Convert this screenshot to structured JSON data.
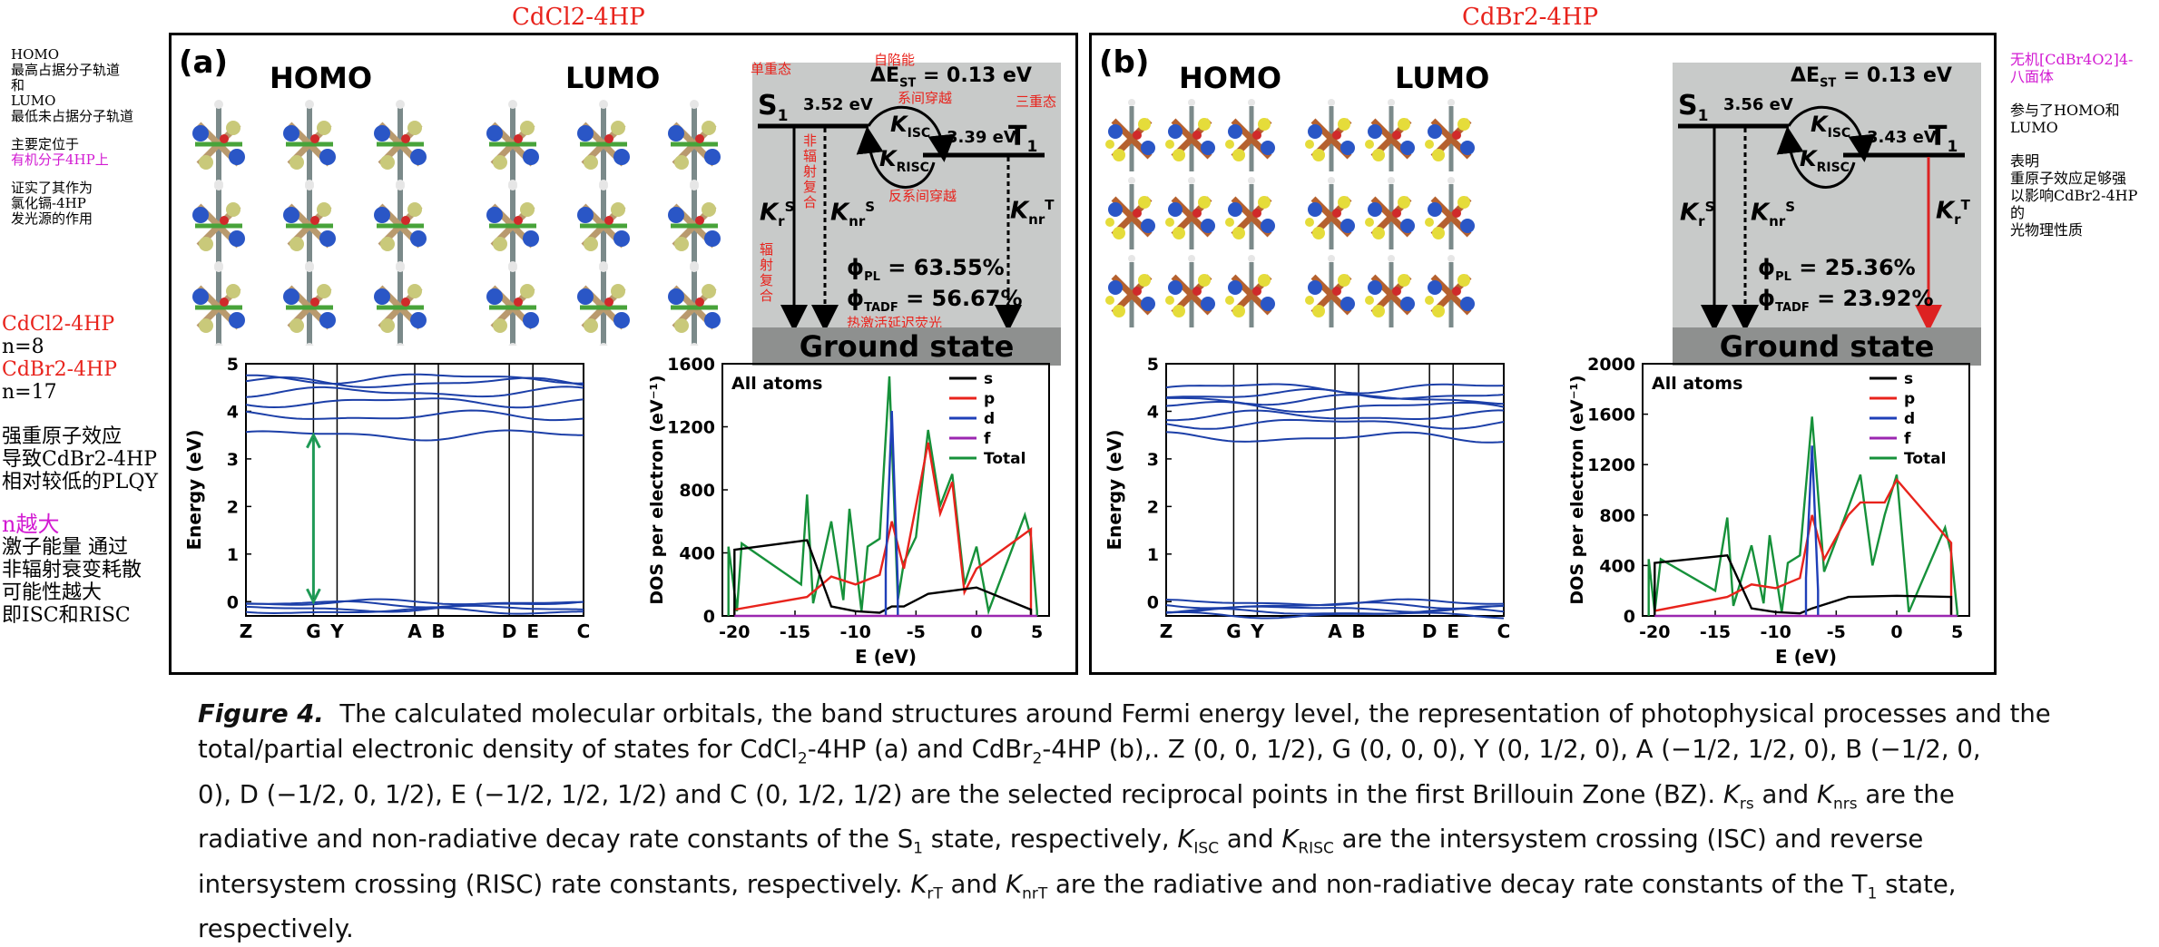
{
  "titles": {
    "left": "CdCl2-4HP",
    "right": "CdBr2-4HP"
  },
  "left_notes": {
    "homo_line1": "HOMO",
    "homo_line2": "最高占据分子轨道",
    "and1": "和",
    "lumo_line1": "LUMO",
    "lumo_line2": "最低未占据分子轨道",
    "mainly_1": "主要定位于",
    "mainly_2": "有机分子4HP上",
    "proof_1": "证实了其作为",
    "proof_2": "氯化镉-4HP",
    "proof_3": "发光源的作用",
    "cdcl": "CdCl2-4HP",
    "n8": "n=8",
    "cdbr": "CdBr2-4HP",
    "n17": "n=17",
    "heavy_1": "强重原子效应",
    "heavy_2": "导致CdBr2-4HP",
    "heavy_3": "相对较低的PLQY",
    "nbig": "n越大",
    "exc_1": "激子能量  通过",
    "exc_2": "非辐射衰变耗散",
    "exc_3": "可能性越大",
    "exc_4": "即ISC和RISC"
  },
  "right_notes": {
    "inorg_1": "无机[CdBr4O2]4-",
    "inorg_2": "八面体",
    "part": "参与了HOMO和LUMO",
    "show_1": "表明",
    "show_2": "重原子效应足够强",
    "show_3": "以影响CdBr2-4HP",
    "show_4": "的",
    "show_5": "光物理性质"
  },
  "panel_a": {
    "label": "(a)",
    "homo": "HOMO",
    "lumo": "LUMO",
    "s1": "S",
    "s1_sub": "1",
    "s1_energy": "3.52 eV",
    "dest": "ΔE",
    "dest_sub": "ST",
    "dest_val": " = 0.13 eV",
    "t1": "T",
    "t1_sub": "1",
    "t1_energy": "3.39 eV",
    "kisc": "K",
    "kisc_sub": "ISC",
    "krisc": "K",
    "krisc_sub": "RISC",
    "kr": "K",
    "kr_sup": "S",
    "kr_sub": "r",
    "knr": "K",
    "knr_sup": "S",
    "knr_sub": "nr",
    "knrt": "K",
    "knrt_sup": "T",
    "knrt_sub": "nr",
    "phipl": "ϕ",
    "phipl_sub": "PL",
    "phipl_val": " = 63.55%",
    "phitadf": "ϕ",
    "phitadf_sub": "TADF",
    "phitadf_val": " = 56.67%",
    "ground": "Ground state",
    "cn_singlet": "单重态",
    "cn_self": "自陷能",
    "cn_isc": "系间穿越",
    "cn_triplet": "三重态",
    "cn_nonrad": "非\n辐\n射\n复\n合",
    "cn_rad": "辐\n射\n复\n合",
    "cn_risc": "反系间穿越",
    "cn_tadf": "热激活延迟荧光"
  },
  "panel_b": {
    "label": "(b)",
    "homo": "HOMO",
    "lumo": "LUMO",
    "s1": "S",
    "s1_sub": "1",
    "s1_energy": "3.56 eV",
    "dest": "ΔE",
    "dest_sub": "ST",
    "dest_val": " = 0.13 eV",
    "t1": "T",
    "t1_sub": "1",
    "t1_energy": "3.43 eV",
    "kisc": "K",
    "kisc_sub": "ISC",
    "krisc": "K",
    "krisc_sub": "RISC",
    "kr": "K",
    "kr_sup": "S",
    "kr_sub": "r",
    "knr": "K",
    "knr_sup": "S",
    "knr_sub": "nr",
    "krt": "K",
    "krt_sup": "T",
    "krt_sub": "r",
    "phipl": "ϕ",
    "phipl_sub": "PL",
    "phipl_val": " = 25.36%",
    "phitadf": "ϕ",
    "phitadf_sub": "TADF",
    "phitadf_val": " = 23.92%",
    "ground": "Ground state"
  },
  "chart_data": [
    {
      "type": "line",
      "id": "band_a",
      "ylabel": "Energy (eV)",
      "ylim": [
        -0.3,
        5
      ],
      "yticks": [
        "0",
        "1",
        "2",
        "3",
        "4",
        "5"
      ],
      "kpoints": [
        "Z",
        "G",
        "Y",
        "A",
        "B",
        "D",
        "E",
        "C"
      ],
      "conduction_bands_approx": [
        3.5,
        3.9,
        4.2,
        4.4,
        4.6,
        4.7
      ],
      "valence_bands_approx": [
        -0.02,
        -0.05,
        -0.15,
        -0.2
      ],
      "gap_arrow": [
        0.0,
        3.5
      ]
    },
    {
      "type": "line",
      "id": "dos_a",
      "title": "All atoms",
      "xlabel": "E (eV)",
      "ylabel": "DOS per electron (eV⁻¹)",
      "xlim": [
        -21,
        6
      ],
      "ylim": [
        0,
        1600
      ],
      "xticks": [
        "-20",
        "-15",
        "-10",
        "-5",
        "0",
        "5"
      ],
      "yticks": [
        "0",
        "400",
        "800",
        "1200",
        "1600"
      ],
      "legend": [
        "s",
        "p",
        "d",
        "f",
        "Total"
      ],
      "series": [
        {
          "name": "Total",
          "x": [
            -20.5,
            -19.8,
            -19.4,
            -14.5,
            -14,
            -13.5,
            -12,
            -11,
            -10.5,
            -9.5,
            -9,
            -8,
            -7.2,
            -6.5,
            -6,
            -5,
            -4,
            -3,
            -2,
            -1,
            0,
            1,
            4,
            4.5,
            5
          ],
          "values": [
            440,
            30,
            460,
            200,
            770,
            80,
            600,
            100,
            680,
            30,
            440,
            490,
            1520,
            100,
            340,
            500,
            1180,
            700,
            900,
            200,
            440,
            30,
            640,
            500,
            30
          ]
        },
        {
          "name": "p",
          "x": [
            -20,
            -14,
            -12,
            -10,
            -8,
            -7,
            -6,
            -4,
            -3,
            -2,
            -1,
            0,
            4.5
          ],
          "values": [
            40,
            120,
            250,
            200,
            260,
            600,
            300,
            1100,
            650,
            850,
            150,
            300,
            550
          ]
        },
        {
          "name": "s",
          "x": [
            -20,
            -14,
            -12,
            -10,
            -8,
            -7,
            -6,
            -4,
            0,
            4.5
          ],
          "values": [
            420,
            480,
            60,
            30,
            20,
            60,
            60,
            140,
            180,
            40
          ]
        },
        {
          "name": "d",
          "x": [
            -7.5,
            -7,
            -6.5
          ],
          "values": [
            300,
            1300,
            200
          ]
        },
        {
          "name": "f",
          "x": [
            -20,
            5
          ],
          "values": [
            0,
            0
          ]
        }
      ]
    },
    {
      "type": "line",
      "id": "band_b",
      "ylabel": "Energy (eV)",
      "ylim": [
        -0.3,
        5
      ],
      "yticks": [
        "0",
        "1",
        "2",
        "3",
        "4",
        "5"
      ],
      "kpoints": [
        "Z",
        "G",
        "Y",
        "A",
        "B",
        "D",
        "E",
        "C"
      ],
      "conduction_bands_approx": [
        3.45,
        3.75,
        3.9,
        4.1,
        4.25,
        4.35,
        4.5
      ],
      "valence_bands_approx": [
        -0.02,
        -0.08,
        -0.15,
        -0.22,
        -0.28
      ]
    },
    {
      "type": "line",
      "id": "dos_b",
      "title": "All atoms",
      "xlabel": "E (eV)",
      "ylabel": "DOS per electron (eV⁻¹)",
      "xlim": [
        -21,
        6
      ],
      "ylim": [
        0,
        2000
      ],
      "xticks": [
        "-20",
        "-15",
        "-10",
        "-5",
        "0",
        "5"
      ],
      "yticks": [
        "0",
        "400",
        "800",
        "1200",
        "1600",
        "2000"
      ],
      "legend": [
        "s",
        "p",
        "d",
        "f",
        "Total"
      ],
      "series": [
        {
          "name": "Total",
          "x": [
            -20.5,
            -20,
            -19.5,
            -15,
            -14,
            -13.5,
            -12,
            -11,
            -10.5,
            -9.5,
            -9,
            -8,
            -7,
            -6,
            -5,
            -4,
            -3,
            -2,
            -1,
            0,
            1,
            4,
            4.5,
            5
          ],
          "values": [
            450,
            30,
            450,
            200,
            780,
            80,
            560,
            100,
            640,
            30,
            420,
            480,
            1580,
            350,
            600,
            860,
            1120,
            400,
            800,
            1120,
            30,
            700,
            500,
            30
          ]
        },
        {
          "name": "p",
          "x": [
            -20,
            -14,
            -12,
            -10,
            -8,
            -7,
            -6,
            -4,
            -3,
            -1,
            0,
            4.5
          ],
          "values": [
            40,
            150,
            250,
            220,
            300,
            800,
            450,
            800,
            900,
            900,
            1080,
            580
          ]
        },
        {
          "name": "s",
          "x": [
            -20,
            -14,
            -12,
            -10,
            -8,
            -7,
            -4,
            0,
            4.5
          ],
          "values": [
            420,
            480,
            60,
            30,
            20,
            60,
            150,
            160,
            150
          ]
        },
        {
          "name": "d",
          "x": [
            -7.5,
            -7,
            -6.5
          ],
          "values": [
            300,
            1350,
            200
          ]
        },
        {
          "name": "f",
          "x": [
            -20,
            5
          ],
          "values": [
            0,
            0
          ]
        }
      ]
    }
  ],
  "caption": {
    "fig": "Figure 4.",
    "l1": "The calculated molecular orbitals, the band structures around Fermi energy level, the representation of photophysical processes and the",
    "l2a": "total/partial electronic density of states for CdCl",
    "l2sub1": "2",
    "l2b": "-4HP (a) and CdBr",
    "l2sub2": "2",
    "l2c": "-4HP (b),. Z (0, 0, 1/2), G (0, 0, 0), Y (0, 1/2, 0), A (−1/2, 1/2, 0), B (−1/2, 0,",
    "l3a": "0), D (−1/2, 0, 1/2), E (−1/2, 1/2, 1/2) and C (0, 1/2, 1/2) are the selected reciprocal points in the first Brillouin Zone (BZ). ",
    "l3k1": "K",
    "l3k1sub": "rs",
    "l3and": " and ",
    "l3k2": "K",
    "l3k2sub": "nrs",
    "l3end": " are the",
    "l4a": "radiative and non-radiative decay rate constants of the S",
    "l4sub1": "1",
    "l4b": " state, respectively, ",
    "l4k1": "K",
    "l4k1sub": "ISC",
    "l4and": " and ",
    "l4k2": "K",
    "l4k2sub": "RISC",
    "l4c": " are the intersystem crossing (ISC) and reverse",
    "l5a": "intersystem crossing (RISC) rate constants, respectively. ",
    "l5k1": "K",
    "l5k1sub": "rT",
    "l5and": " and ",
    "l5k2": "K",
    "l5k2sub": "nrT",
    "l5b": " are the radiative and non-radiative decay rate constants of the T",
    "l5sub": "1",
    "l5c": " state,",
    "l6": "respectively."
  },
  "colors": {
    "annot_red": "#e8231c",
    "annot_magenta": "#d21ad2",
    "band_blue": "#1c3fa8",
    "gap_arrow": "#1f9a56",
    "dos_s": "#000000",
    "dos_p": "#e8231c",
    "dos_d": "#1f3fb8",
    "dos_f": "#9b27b0",
    "dos_total": "#16913a",
    "energy_box": "#c8cac9",
    "ground_bar": "#8e908f"
  }
}
